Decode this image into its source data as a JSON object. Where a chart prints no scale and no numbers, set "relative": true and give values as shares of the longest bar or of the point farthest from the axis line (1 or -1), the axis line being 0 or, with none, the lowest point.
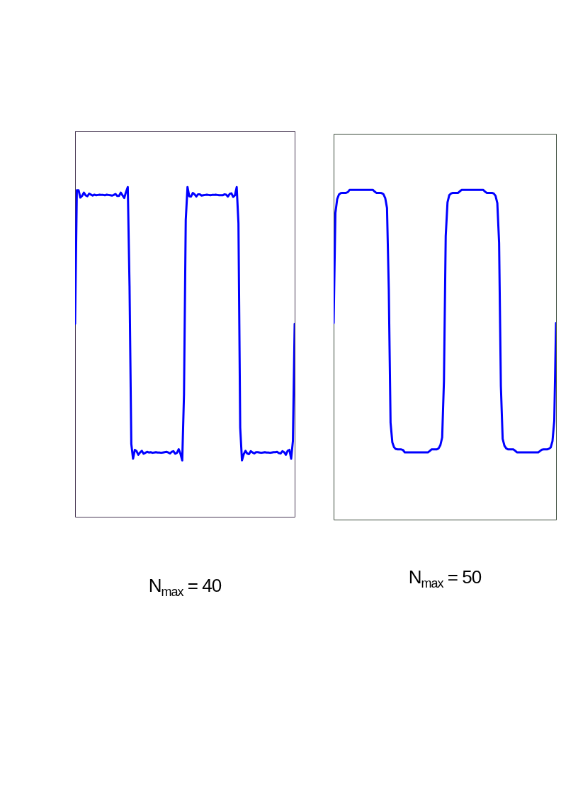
{
  "chart_data": [
    {
      "type": "line",
      "xlabel": "N$_{max}$ = 40",
      "relative": true,
      "categories": [
        null,
        null,
        null,
        null,
        null,
        null,
        null,
        null,
        null,
        null,
        null,
        null,
        null,
        null,
        null,
        null,
        null,
        null,
        null,
        null,
        null,
        null,
        null,
        null,
        null,
        null,
        null,
        null,
        null,
        null,
        null,
        null,
        null,
        null,
        null,
        null,
        null,
        null,
        null,
        null,
        null,
        null,
        null,
        null,
        null,
        null,
        null,
        null,
        null,
        null,
        null,
        null,
        null,
        null,
        null,
        null,
        null,
        null,
        null,
        null,
        null,
        null,
        null,
        null,
        null,
        null,
        null,
        null,
        null,
        null,
        null,
        null,
        null,
        null,
        null,
        null,
        null,
        null,
        null,
        null,
        null,
        null,
        null,
        null,
        null,
        null,
        null,
        null,
        null,
        null,
        null,
        null,
        null,
        null,
        null,
        null,
        null,
        null,
        null,
        null,
        null,
        null,
        null,
        null,
        null,
        null,
        null,
        null,
        null,
        null,
        null,
        null,
        null,
        null,
        null,
        null,
        null,
        null,
        null,
        null,
        null,
        null,
        null,
        null,
        null,
        null
      ],
      "series": [
        {
          "color": "#0000ff",
          "values": [
            0.585,
            0.99,
            0.99,
            0.968,
            0.973,
            0.983,
            0.975,
            0.972,
            0.98,
            0.977,
            0.974,
            0.977,
            0.975,
            0.976,
            0.977,
            0.976,
            0.976,
            0.975,
            0.977,
            0.976,
            0.975,
            0.974,
            0.976,
            0.979,
            0.973,
            0.973,
            0.983,
            0.975,
            0.967,
            0.985,
            1,
            0.7,
            0.221,
            0.176,
            0.203,
            0.199,
            0.188,
            0.195,
            0.2,
            0.191,
            0.194,
            0.197,
            0.195,
            0.196,
            0.194,
            0.195,
            0.196,
            0.195,
            0.195,
            0.194,
            0.195,
            0.196,
            0.197,
            0.195,
            0.192,
            0.197,
            0.199,
            0.191,
            0.194,
            0.205,
            0.191,
            0.171,
            0.371,
            0.9,
            1,
            0.972,
            0.971,
            0.982,
            0.978,
            0.971,
            0.978,
            0.978,
            0.974,
            0.975,
            0.976,
            0.977,
            0.976,
            0.975,
            0.976,
            0.976,
            0.977,
            0.976,
            0.975,
            0.975,
            0.975,
            0.978,
            0.977,
            0.971,
            0.979,
            0.981,
            0.97,
            0.975,
            1,
            0.89,
            0.27,
            0.171,
            0.19,
            0.2,
            0.192,
            0.19,
            0.199,
            0.195,
            0.192,
            0.196,
            0.196,
            0.195,
            0.194,
            0.195,
            0.196,
            0.195,
            0.195,
            0.194,
            0.195,
            0.196,
            0.196,
            0.197,
            0.193,
            0.192,
            0.199,
            0.196,
            0.188,
            0.2,
            0.203,
            0.176,
            0.23,
            0.585
          ]
        }
      ]
    },
    {
      "type": "line",
      "xlabel": "N$_{max}$ = 50",
      "relative": true,
      "categories": [
        null,
        null,
        null,
        null,
        null,
        null,
        null,
        null,
        null,
        null,
        null,
        null,
        null,
        null,
        null,
        null,
        null,
        null,
        null,
        null,
        null,
        null,
        null,
        null,
        null,
        null,
        null,
        null,
        null,
        null,
        null,
        null,
        null,
        null,
        null,
        null,
        null,
        null,
        null,
        null,
        null,
        null,
        null,
        null,
        null,
        null,
        null,
        null,
        null,
        null,
        null,
        null,
        null,
        null,
        null,
        null,
        null,
        null,
        null,
        null,
        null,
        null,
        null,
        null,
        null,
        null,
        null,
        null,
        null,
        null,
        null,
        null,
        null,
        null,
        null,
        null,
        null,
        null,
        null,
        null,
        null,
        null,
        null,
        null,
        null,
        null,
        null,
        null,
        null,
        null,
        null,
        null,
        null,
        null,
        null,
        null,
        null,
        null,
        null,
        null,
        null,
        null,
        null,
        null,
        null,
        null,
        null,
        null,
        null,
        null,
        null,
        null,
        null,
        null,
        null,
        null,
        null,
        null,
        null,
        null,
        null,
        null,
        null,
        null,
        null,
        null
      ],
      "series": [
        {
          "color": "#0000ff",
          "values": [
            0.596,
            0.93,
            0.972,
            0.986,
            0.99,
            0.991,
            0.991,
            0.991,
            0.993,
            1,
            1,
            1,
            1,
            1,
            1,
            1,
            1,
            1,
            1,
            1,
            1,
            1,
            1,
            0.995,
            0.991,
            0.991,
            0.991,
            0.99,
            0.987,
            0.975,
            0.945,
            0.7,
            0.294,
            0.234,
            0.219,
            0.214,
            0.213,
            0.213,
            0.213,
            0.211,
            0.204,
            0.204,
            0.204,
            0.204,
            0.204,
            0.204,
            0.204,
            0.204,
            0.204,
            0.204,
            0.204,
            0.204,
            0.204,
            0.204,
            0.208,
            0.213,
            0.213,
            0.213,
            0.213,
            0.216,
            0.226,
            0.249,
            0.42,
            0.86,
            0.962,
            0.984,
            0.989,
            0.991,
            0.991,
            0.991,
            0.991,
            0.996,
            1,
            1,
            1,
            1,
            1,
            1,
            1,
            1,
            1,
            1,
            1,
            1,
            1,
            0.995,
            0.991,
            0.991,
            0.991,
            0.991,
            0.989,
            0.982,
            0.96,
            0.84,
            0.404,
            0.245,
            0.224,
            0.216,
            0.213,
            0.213,
            0.213,
            0.213,
            0.209,
            0.204,
            0.204,
            0.204,
            0.204,
            0.204,
            0.204,
            0.204,
            0.204,
            0.204,
            0.204,
            0.204,
            0.204,
            0.204,
            0.208,
            0.212,
            0.213,
            0.213,
            0.213,
            0.215,
            0.219,
            0.238,
            0.3,
            0.596
          ]
        }
      ]
    }
  ]
}
